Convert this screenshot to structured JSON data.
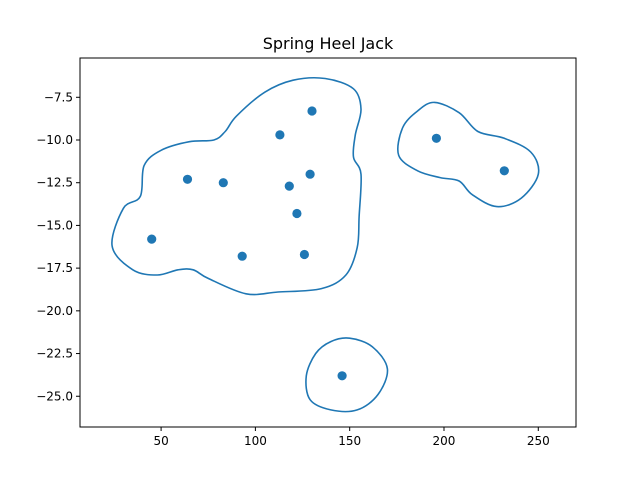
{
  "chart_data": {
    "type": "scatter",
    "title": "Spring Heel Jack",
    "xlabel": "",
    "ylabel": "",
    "xlim": [
      7,
      270
    ],
    "ylim": [
      -26.8,
      -5.2
    ],
    "xticks": [
      50,
      100,
      150,
      200,
      250
    ],
    "yticks": [
      -7.5,
      -10.0,
      -12.5,
      -15.0,
      -17.5,
      -20.0,
      -22.5,
      -25.0
    ],
    "grid": false,
    "color": "#1f77b4",
    "series": [
      {
        "points": [
          {
            "x": 130,
            "y": -8.3
          },
          {
            "x": 113,
            "y": -9.7
          },
          {
            "x": 64,
            "y": -12.3
          },
          {
            "x": 83,
            "y": -12.5
          },
          {
            "x": 118,
            "y": -12.7
          },
          {
            "x": 129,
            "y": -12.0
          },
          {
            "x": 122,
            "y": -14.3
          },
          {
            "x": 45,
            "y": -15.8
          },
          {
            "x": 93,
            "y": -16.8
          },
          {
            "x": 126,
            "y": -16.7
          },
          {
            "x": 196,
            "y": -9.9
          },
          {
            "x": 232,
            "y": -11.8
          },
          {
            "x": 146,
            "y": -23.8
          }
        ]
      }
    ],
    "contours": [
      {
        "points": [
          [
            137,
            -6.4
          ],
          [
            152,
            -7.0
          ],
          [
            156,
            -8.2
          ],
          [
            153,
            -9.7
          ],
          [
            152,
            -11.0
          ],
          [
            156,
            -12.0
          ],
          [
            155,
            -14.5
          ],
          [
            154,
            -16.3
          ],
          [
            148,
            -17.9
          ],
          [
            135,
            -18.7
          ],
          [
            112,
            -18.9
          ],
          [
            95,
            -19.0
          ],
          [
            75,
            -18.1
          ],
          [
            67,
            -17.6
          ],
          [
            59,
            -17.6
          ],
          [
            48,
            -17.9
          ],
          [
            35,
            -17.6
          ],
          [
            24,
            -16.2
          ],
          [
            30,
            -14.0
          ],
          [
            39,
            -13.3
          ],
          [
            41,
            -11.5
          ],
          [
            50,
            -10.6
          ],
          [
            65,
            -10.1
          ],
          [
            78,
            -10.0
          ],
          [
            84,
            -9.5
          ],
          [
            90,
            -8.6
          ],
          [
            105,
            -7.2
          ],
          [
            120,
            -6.5
          ]
        ]
      },
      {
        "points": [
          [
            195,
            -7.8
          ],
          [
            208,
            -8.4
          ],
          [
            218,
            -9.5
          ],
          [
            232,
            -9.9
          ],
          [
            246,
            -10.7
          ],
          [
            250,
            -12.0
          ],
          [
            241,
            -13.4
          ],
          [
            228,
            -13.9
          ],
          [
            215,
            -13.2
          ],
          [
            208,
            -12.4
          ],
          [
            198,
            -12.2
          ],
          [
            186,
            -11.8
          ],
          [
            176,
            -10.9
          ],
          [
            178,
            -9.3
          ],
          [
            186,
            -8.3
          ]
        ]
      },
      {
        "points": [
          [
            150,
            -21.6
          ],
          [
            162,
            -22.1
          ],
          [
            170,
            -23.4
          ],
          [
            165,
            -24.9
          ],
          [
            154,
            -25.8
          ],
          [
            140,
            -25.8
          ],
          [
            129,
            -25.2
          ],
          [
            127,
            -23.8
          ],
          [
            132,
            -22.5
          ],
          [
            140,
            -21.8
          ]
        ]
      }
    ]
  }
}
